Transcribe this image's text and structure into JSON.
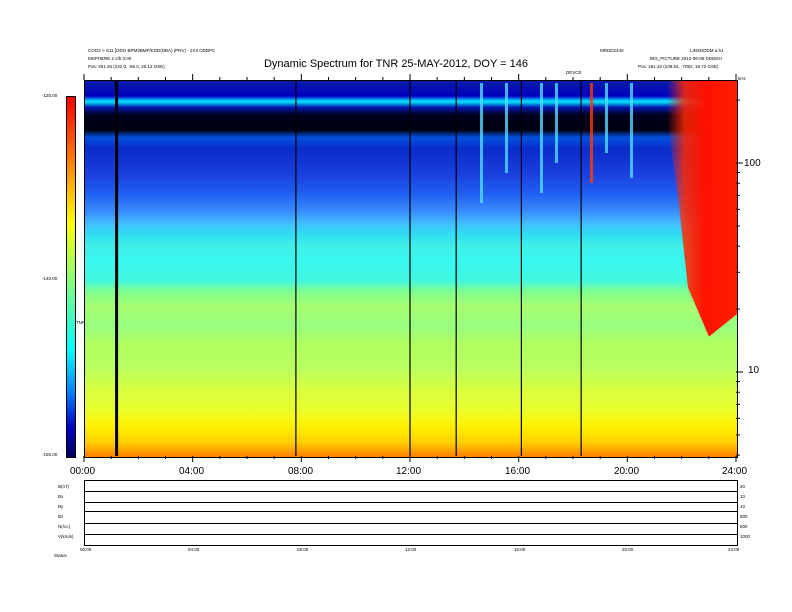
{
  "header": {
    "left_line1": "COO2 > S11 [ODO BPM3BMP/KDD(DBA) (PRV) - 2X4 ODBPC",
    "left_line2": "MSPHERE 2 s/b 0:00",
    "left_line3": "Pos:   251.25 (232.0, -56.0, 20.12 GSE)",
    "right_line1": "MRDD2440",
    "right_line2": "LINSDDDM a b1",
    "right_line3": "BIG_PICTURE  2012-06-05  DDDDH",
    "right_line4": "Pos:   251.32 (239.54, -7052, 19.72 GSE)",
    "center_small": "DEVCE",
    "corner": "kHz"
  },
  "chart_data": {
    "type": "heatmap",
    "title": "Dynamic Spectrum for TNR 25-MAY-2012, DOY = 146",
    "x_tick_labels": [
      "00:00",
      "04:00",
      "08:00",
      "12:00",
      "16:00",
      "20:00",
      "24:00"
    ],
    "x_range_hours": [
      0,
      24
    ],
    "y_right_tick_labels": [
      "100",
      "10"
    ],
    "colorbar_tick_labels": [
      "-125.00",
      "-140.00",
      "-155.00"
    ],
    "colorbar_range": [
      -155,
      -125
    ],
    "colorbar_label": "TNR",
    "data_gap_hours": [
      1.2,
      7.8,
      12.0,
      13.7,
      16.1,
      18.3
    ],
    "storm_start_hour": 21.4,
    "grid": false
  },
  "timeseries": {
    "labels": [
      "B(nT)",
      "Bx",
      "By",
      "Bz",
      "N(/cc)",
      "V(km/s)"
    ],
    "right_labels": [
      "20",
      "10",
      "10",
      "500",
      "500",
      "1000"
    ],
    "x_tick_labels": [
      "00:00",
      "04:00",
      "08:00",
      "12:00",
      "16:00",
      "20:00",
      "24:00"
    ],
    "bottom_label": "Status"
  }
}
